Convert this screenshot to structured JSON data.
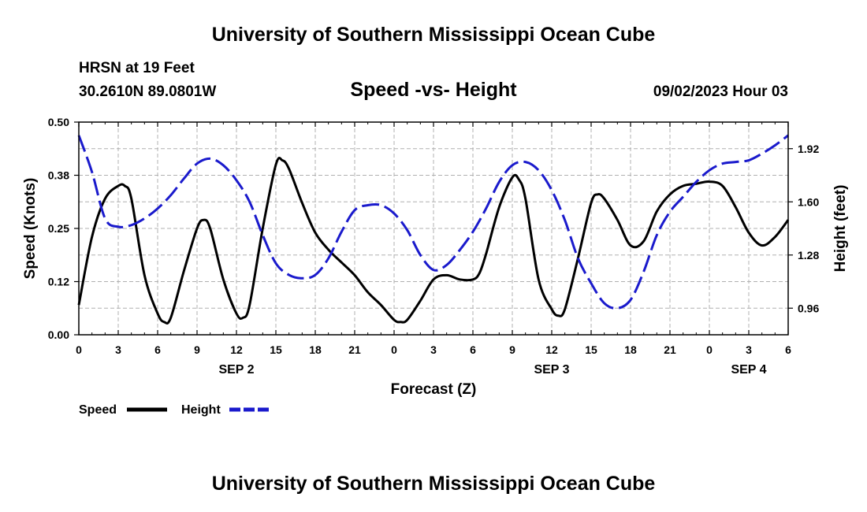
{
  "header": {
    "title": "University of Southern Mississippi Ocean Cube",
    "station": "HRSN at 19 Feet",
    "coords": "30.2610N  89.0801W",
    "chart_title": "Speed -vs- Height",
    "date": "09/02/2023 Hour 03"
  },
  "footer": {
    "title": "University of Southern Mississippi Ocean Cube"
  },
  "colors": {
    "speed": "#000000",
    "height": "#1a1acc",
    "grid": "#b0b0b0"
  },
  "chart_data": {
    "type": "line",
    "title": "Speed -vs- Height",
    "xlabel": "Forecast (Z)",
    "ylabel": "Speed (Knots)",
    "y2label": "Height (feet)",
    "xlim": [
      0,
      54
    ],
    "ylim": [
      0,
      0.5
    ],
    "y2lim": [
      0.8,
      2.08
    ],
    "x_ticks": [
      0,
      3,
      6,
      9,
      12,
      15,
      18,
      21,
      24,
      27,
      30,
      33,
      36,
      39,
      42,
      45,
      48,
      51,
      54
    ],
    "x_tick_labels": [
      "0",
      "3",
      "6",
      "9",
      "12",
      "15",
      "18",
      "21",
      "0",
      "3",
      "6",
      "9",
      "12",
      "15",
      "18",
      "21",
      "0",
      "3",
      "6"
    ],
    "y_ticks": [
      0,
      0.125,
      0.25,
      0.375,
      0.5
    ],
    "y_tick_labels": [
      "0.00",
      "0.12",
      "0.25",
      "0.38",
      "0.50"
    ],
    "y2_ticks": [
      0.96,
      1.28,
      1.6,
      1.92
    ],
    "y2_tick_labels": [
      "0.96",
      "1.28",
      "1.60",
      "1.92"
    ],
    "day_labels": [
      {
        "x": 12,
        "label": "SEP 2"
      },
      {
        "x": 36,
        "label": "SEP 3"
      },
      {
        "x": 51,
        "label": "SEP 4"
      }
    ],
    "series": [
      {
        "name": "Speed",
        "axis": "left",
        "style": "solid",
        "x": [
          0,
          1,
          2,
          3,
          3.5,
          4,
          5,
          6,
          6.5,
          7,
          8,
          9,
          9.5,
          10,
          11,
          12,
          12.5,
          13,
          14,
          15,
          15.5,
          16,
          17,
          18,
          19,
          20,
          21,
          22,
          23,
          24,
          24.5,
          25,
          26,
          27,
          28,
          29,
          30,
          30.5,
          31,
          32,
          33,
          33.5,
          34,
          35,
          36,
          36.5,
          37,
          38,
          39,
          39.5,
          40,
          41,
          42,
          43,
          44,
          45,
          46,
          47,
          48,
          49,
          50,
          51,
          52,
          53,
          54
        ],
        "values": [
          0.07,
          0.23,
          0.32,
          0.35,
          0.35,
          0.32,
          0.14,
          0.05,
          0.03,
          0.04,
          0.15,
          0.25,
          0.27,
          0.25,
          0.13,
          0.05,
          0.04,
          0.07,
          0.25,
          0.4,
          0.41,
          0.39,
          0.31,
          0.24,
          0.2,
          0.17,
          0.14,
          0.1,
          0.07,
          0.035,
          0.03,
          0.035,
          0.08,
          0.13,
          0.14,
          0.13,
          0.13,
          0.145,
          0.19,
          0.3,
          0.37,
          0.365,
          0.32,
          0.13,
          0.06,
          0.045,
          0.06,
          0.18,
          0.31,
          0.33,
          0.32,
          0.27,
          0.21,
          0.22,
          0.29,
          0.33,
          0.35,
          0.355,
          0.36,
          0.35,
          0.3,
          0.24,
          0.21,
          0.23,
          0.27
        ]
      },
      {
        "name": "Height",
        "axis": "right",
        "style": "dashed",
        "x": [
          0,
          1,
          2,
          3,
          4,
          5,
          6,
          7,
          8,
          9,
          10,
          11,
          12,
          13,
          14,
          15,
          16,
          17,
          18,
          19,
          20,
          21,
          22,
          23,
          24,
          25,
          26,
          27,
          28,
          29,
          30,
          31,
          32,
          33,
          34,
          35,
          36,
          37,
          38,
          39,
          40,
          41,
          42,
          43,
          44,
          45,
          46,
          47,
          48,
          49,
          50,
          51,
          52,
          53,
          54
        ],
        "values": [
          2.0,
          1.78,
          1.5,
          1.45,
          1.46,
          1.5,
          1.56,
          1.64,
          1.74,
          1.83,
          1.86,
          1.82,
          1.73,
          1.6,
          1.4,
          1.23,
          1.16,
          1.14,
          1.16,
          1.26,
          1.42,
          1.55,
          1.58,
          1.58,
          1.53,
          1.43,
          1.28,
          1.19,
          1.22,
          1.31,
          1.42,
          1.56,
          1.72,
          1.82,
          1.84,
          1.79,
          1.67,
          1.49,
          1.26,
          1.11,
          0.99,
          0.96,
          1.01,
          1.18,
          1.4,
          1.54,
          1.63,
          1.72,
          1.79,
          1.83,
          1.84,
          1.85,
          1.89,
          1.94,
          2.0
        ]
      }
    ]
  },
  "legend": {
    "speed_label": "Speed",
    "height_label": "Height"
  }
}
